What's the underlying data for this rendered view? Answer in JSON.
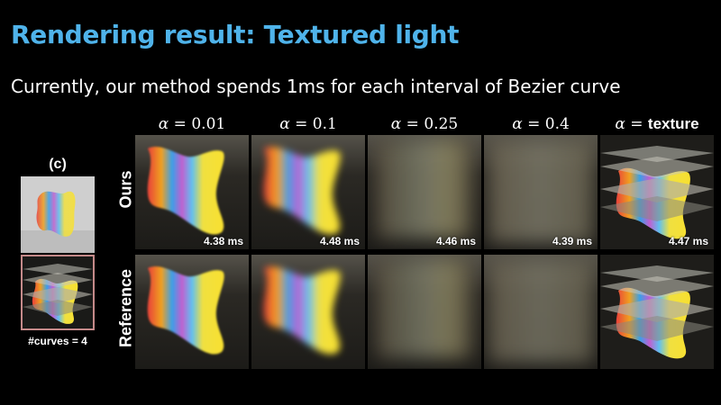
{
  "slide": {
    "title": "Rendering result: Textured light",
    "subtitle": "Currently, our method spends 1ms for each interval of Bezier curve"
  },
  "columns": [
    {
      "alpha_symbol": "α",
      "eq": " = ",
      "value": "0.01"
    },
    {
      "alpha_symbol": "α",
      "eq": " = ",
      "value": "0.1"
    },
    {
      "alpha_symbol": "α",
      "eq": " = ",
      "value": "0.25"
    },
    {
      "alpha_symbol": "α",
      "eq": " = ",
      "value": "0.4"
    },
    {
      "alpha_symbol": "α",
      "eq": " = ",
      "value": "texture"
    }
  ],
  "rows": [
    {
      "label": "Ours",
      "times": [
        "4.38 ms",
        "4.48 ms",
        "4.46 ms",
        "4.39 ms",
        "4.47 ms"
      ]
    },
    {
      "label": "Reference"
    }
  ],
  "inset": {
    "label": "(c)",
    "curves_label": "#curves = 4"
  }
}
